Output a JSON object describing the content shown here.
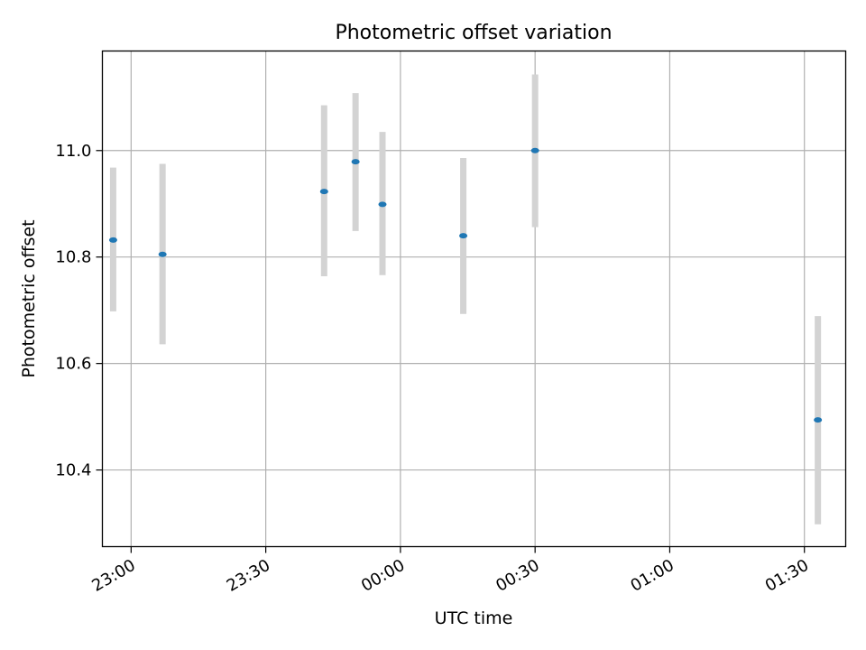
{
  "chart_data": {
    "type": "scatter",
    "title": "Photometric offset variation",
    "xlabel": "UTC time",
    "ylabel": "Photometric offset",
    "x_ticks": [
      "23:00",
      "23:30",
      "00:00",
      "00:30",
      "01:00",
      "01:30"
    ],
    "y_ticks": [
      "10.4",
      "10.6",
      "10.8",
      "11.0"
    ],
    "y_tick_values": [
      10.4,
      10.6,
      10.8,
      11.0
    ],
    "xlim": [
      "22:53.6",
      "01:39.2"
    ],
    "ylim": [
      10.256,
      11.187
    ],
    "grid": true,
    "series": [
      {
        "points": [
          {
            "x": "22:56",
            "y": 10.832,
            "y_low": 10.698,
            "y_high": 10.968
          },
          {
            "x": "23:07",
            "y": 10.805,
            "y_low": 10.636,
            "y_high": 10.975
          },
          {
            "x": "23:43",
            "y": 10.923,
            "y_low": 10.764,
            "y_high": 11.085
          },
          {
            "x": "23:50",
            "y": 10.979,
            "y_low": 10.849,
            "y_high": 11.108
          },
          {
            "x": "23:56",
            "y": 10.899,
            "y_low": 10.766,
            "y_high": 11.035
          },
          {
            "x": "00:14",
            "y": 10.84,
            "y_low": 10.693,
            "y_high": 10.986
          },
          {
            "x": "00:30",
            "y": 11.0,
            "y_low": 10.856,
            "y_high": 11.143
          },
          {
            "x": "01:33",
            "y": 10.494,
            "y_low": 10.298,
            "y_high": 10.689
          }
        ]
      }
    ],
    "colors": {
      "marker": "#1f77b4",
      "errorbar": "#d3d3d3",
      "grid": "#b0b0b0",
      "axes": "#000000"
    }
  }
}
